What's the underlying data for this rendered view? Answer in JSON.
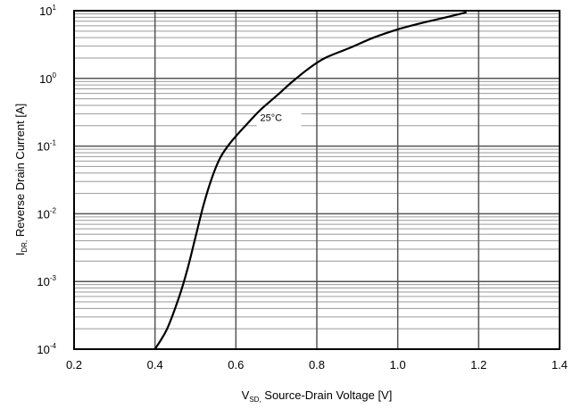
{
  "chart_data": {
    "type": "line",
    "title": "",
    "xlabel": {
      "prefix": "V",
      "subscript": "SD,",
      "text": " Source-Drain Voltage [V]"
    },
    "ylabel": {
      "prefix": "I",
      "subscript": "DR,",
      "text": " Reverse Drain Current [A]"
    },
    "xlim": [
      0.2,
      1.4
    ],
    "ylim": [
      0.0001,
      10
    ],
    "yscale": "log",
    "grid": true,
    "x_ticks": [
      "0.2",
      "0.4",
      "0.6",
      "0.8",
      "1.0",
      "1.2",
      "1.4"
    ],
    "y_ticks": [
      {
        "base": "10",
        "exp": "1",
        "value": 10
      },
      {
        "base": "10",
        "exp": "0",
        "value": 1
      },
      {
        "base": "10",
        "exp": "-1",
        "value": 0.1
      },
      {
        "base": "10",
        "exp": "-2",
        "value": 0.01
      },
      {
        "base": "10",
        "exp": "-3",
        "value": 0.001
      },
      {
        "base": "10",
        "exp": "-4",
        "value": 0.0001
      }
    ],
    "series": [
      {
        "name": "25°C",
        "x": [
          0.4,
          0.43,
          0.46,
          0.48,
          0.5,
          0.52,
          0.54,
          0.56,
          0.58,
          0.6,
          0.63,
          0.66,
          0.7,
          0.74,
          0.78,
          0.82,
          0.88,
          0.94,
          1.0,
          1.06,
          1.12,
          1.17
        ],
        "values": [
          0.0001,
          0.0002,
          0.0006,
          0.0015,
          0.0045,
          0.0135,
          0.033,
          0.065,
          0.1,
          0.14,
          0.22,
          0.34,
          0.55,
          0.9,
          1.4,
          2.0,
          2.8,
          4.0,
          5.3,
          6.6,
          8.0,
          9.5
        ]
      }
    ],
    "annotation": {
      "text": "25°C",
      "x": 0.66,
      "y": 0.28
    },
    "colors": {
      "curve": "#000000",
      "frame": "#000000",
      "major_grid": "#555555",
      "minor_grid": "#9a9a9a"
    }
  }
}
